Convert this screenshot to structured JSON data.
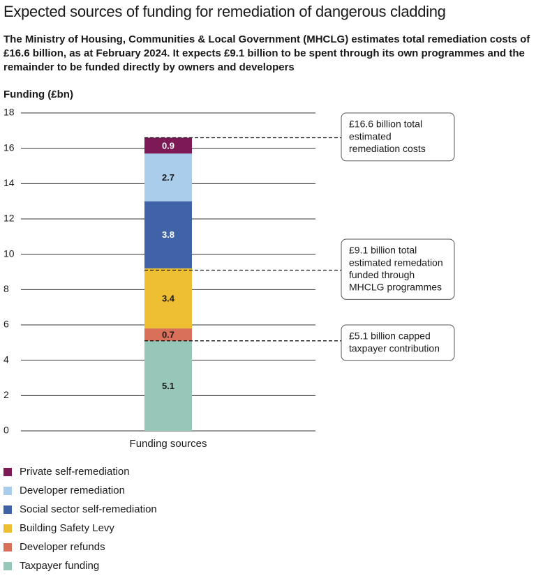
{
  "chart_data": {
    "type": "stacked_bar",
    "title": "Expected sources of funding for remediation of dangerous cladding",
    "subtitle": "The Ministry of Housing, Communities & Local Government (MHCLG) estimates total remediation costs of £16.6 billion, as at February 2024. It expects £9.1 billion to be spent through its own programmes and the remainder to be funded directly by owners and developers",
    "y_label": "Funding (£bn)",
    "categories": [
      "Funding sources"
    ],
    "series": [
      {
        "name": "Taxpayer funding",
        "color": "#96c7b8",
        "values": [
          5.1
        ]
      },
      {
        "name": "Developer refunds",
        "color": "#d8705a",
        "values": [
          0.7
        ]
      },
      {
        "name": "Building Safety Levy",
        "color": "#efbf33",
        "values": [
          3.4
        ]
      },
      {
        "name": "Social sector self-remediation",
        "color": "#3f63a6",
        "values": [
          3.8
        ]
      },
      {
        "name": "Developer remediation",
        "color": "#a9cdea",
        "values": [
          2.7
        ]
      },
      {
        "name": "Private self-remediation",
        "color": "#7d1a55",
        "values": [
          0.9
        ]
      }
    ],
    "ylim": [
      0,
      18
    ],
    "yticks": [
      0,
      2,
      4,
      6,
      8,
      10,
      12,
      14,
      16,
      18
    ],
    "grid": true,
    "annotations": [
      {
        "lines": [
          "£16.6 billion total",
          "estimated",
          "remediation costs"
        ],
        "y": 16.6
      },
      {
        "lines": [
          "£9.1 billion total",
          "estimated remedation",
          "funded through",
          "MHCLG programmes"
        ],
        "y": 9.1
      },
      {
        "lines": [
          "£5.1 billion capped",
          "taxpayer contribution"
        ],
        "y": 5.1
      }
    ]
  }
}
